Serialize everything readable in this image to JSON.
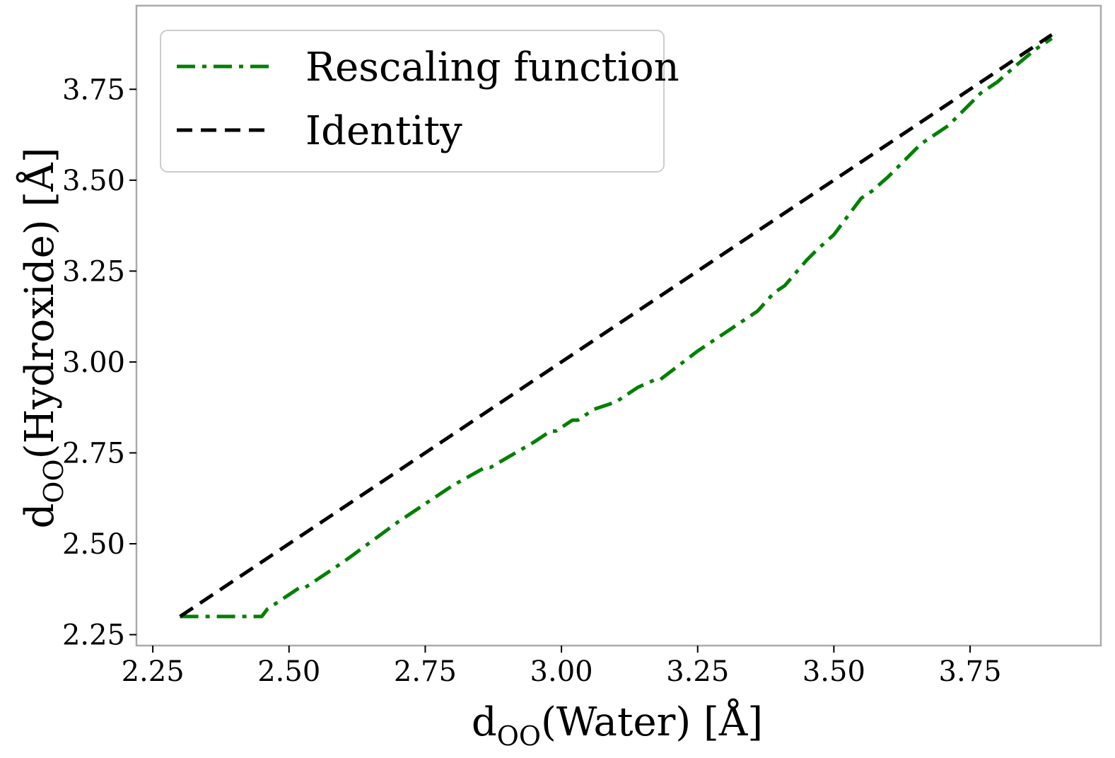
{
  "chart_data": {
    "type": "line",
    "title": "",
    "xlabel": "d_OO(Water) [Å]",
    "ylabel": "d_OO(Hydroxide) [Å]",
    "xlabel_main": "d",
    "xlabel_sub": "OO",
    "xlabel_rest": "(Water) [Å]",
    "ylabel_main": "d",
    "ylabel_sub": "OO",
    "ylabel_rest": "(Hydroxide) [Å]",
    "xlim": [
      2.22,
      3.99
    ],
    "ylim": [
      2.22,
      3.98
    ],
    "xticks": [
      2.25,
      2.5,
      2.75,
      3.0,
      3.25,
      3.5,
      3.75
    ],
    "yticks": [
      2.25,
      2.5,
      2.75,
      3.0,
      3.25,
      3.5,
      3.75
    ],
    "xtick_labels": [
      "2.25",
      "2.50",
      "2.75",
      "3.00",
      "3.25",
      "3.50",
      "3.75"
    ],
    "ytick_labels": [
      "2.25",
      "2.50",
      "2.75",
      "3.00",
      "3.25",
      "3.50",
      "3.75"
    ],
    "grid": false,
    "legend_position": "top-left",
    "series": [
      {
        "name": "Rescaling function",
        "color": "#008000",
        "style": "dash-dot",
        "x": [
          2.3,
          2.35,
          2.4,
          2.45,
          2.46,
          2.5,
          2.52,
          2.53,
          2.6,
          2.7,
          2.8,
          2.86,
          2.87,
          2.95,
          2.98,
          2.99,
          3.02,
          3.03,
          3.06,
          3.08,
          3.1,
          3.14,
          3.17,
          3.18,
          3.25,
          3.3,
          3.36,
          3.39,
          3.41,
          3.45,
          3.47,
          3.5,
          3.55,
          3.57,
          3.6,
          3.62,
          3.66,
          3.69,
          3.71,
          3.73,
          3.75,
          3.77,
          3.8,
          3.83,
          3.87,
          3.9
        ],
        "y": [
          2.3,
          2.3,
          2.3,
          2.3,
          2.32,
          2.36,
          2.38,
          2.38,
          2.45,
          2.56,
          2.66,
          2.71,
          2.71,
          2.78,
          2.81,
          2.81,
          2.84,
          2.84,
          2.87,
          2.88,
          2.89,
          2.93,
          2.95,
          2.95,
          3.03,
          3.08,
          3.14,
          3.19,
          3.21,
          3.28,
          3.31,
          3.35,
          3.45,
          3.47,
          3.51,
          3.54,
          3.6,
          3.63,
          3.65,
          3.68,
          3.71,
          3.74,
          3.77,
          3.81,
          3.86,
          3.89
        ]
      },
      {
        "name": "Identity",
        "color": "#000000",
        "style": "dashed",
        "x": [
          2.3,
          3.9
        ],
        "y": [
          2.3,
          3.9
        ]
      }
    ]
  }
}
